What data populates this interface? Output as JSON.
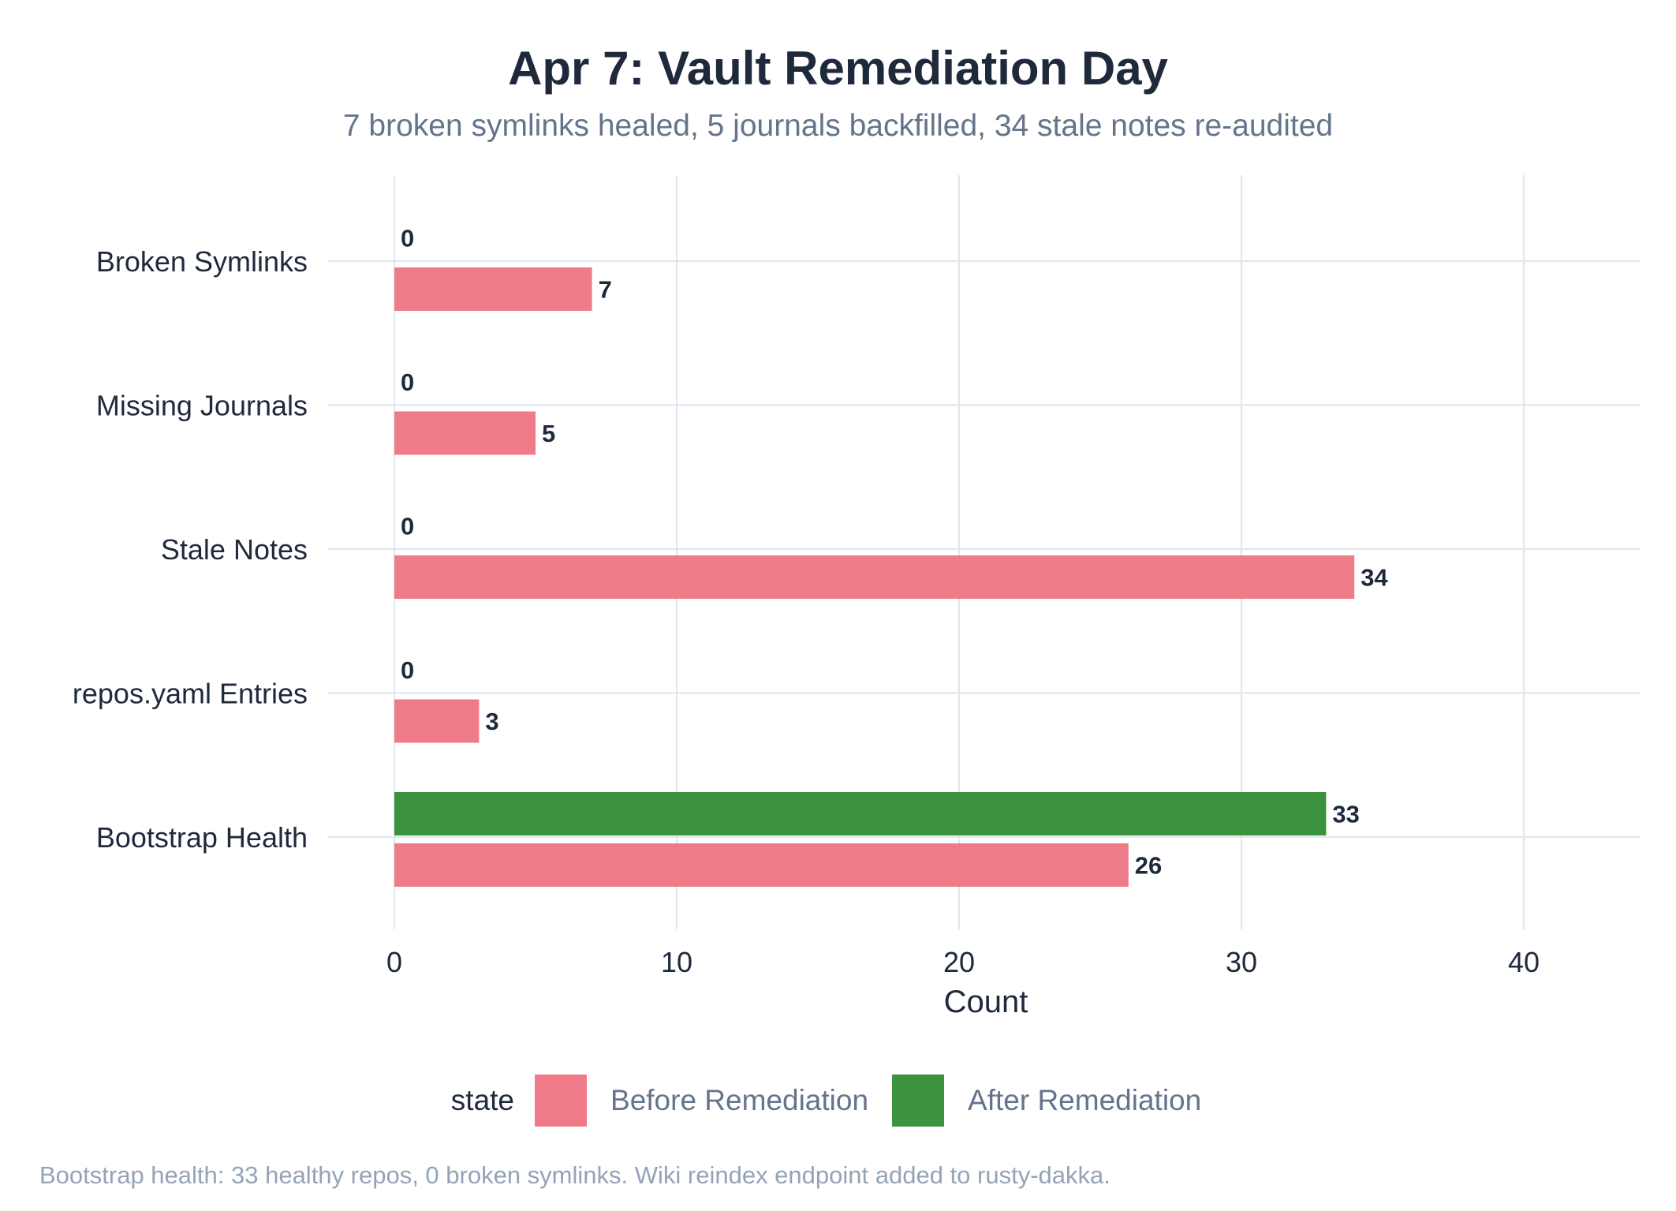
{
  "title": "Apr 7: Vault Remediation Day",
  "subtitle": "7 broken symlinks healed, 5 journals backfilled, 34 stale notes re-audited",
  "caption": "Bootstrap health: 33 healthy repos, 0 broken symlinks. Wiki reindex endpoint added to rusty-dakka.",
  "legend": {
    "title": "state",
    "items": [
      {
        "label": "Before Remediation",
        "color": "#ef7b88"
      },
      {
        "label": "After Remediation",
        "color": "#3b923f"
      }
    ]
  },
  "chart_data": {
    "type": "bar",
    "orientation": "horizontal",
    "categories": [
      "Broken Symlinks",
      "Missing Journals",
      "Stale Notes",
      "repos.yaml Entries",
      "Bootstrap Health"
    ],
    "series": [
      {
        "name": "After Remediation",
        "color": "#3b923f",
        "values": [
          0,
          0,
          0,
          0,
          33
        ]
      },
      {
        "name": "Before Remediation",
        "color": "#ef7b88",
        "values": [
          7,
          5,
          34,
          3,
          26
        ]
      }
    ],
    "xlabel": "Count",
    "ylabel": "",
    "xlim": [
      0,
      44
    ],
    "xticks": [
      0,
      10,
      20,
      30,
      40
    ],
    "grid": true,
    "legend_position": "bottom"
  }
}
